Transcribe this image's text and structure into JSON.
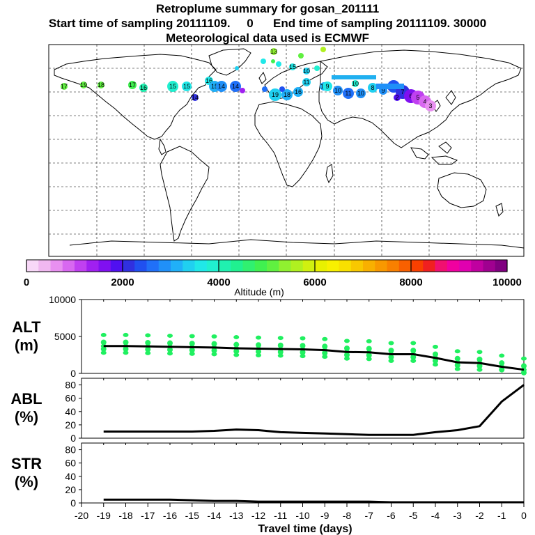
{
  "titles": {
    "line1": "Retroplume summary for gosan_201111",
    "line2": "Start time of sampling 20111109.     0      End time of sampling 20111109. 30000",
    "line3": "Meteorological data used is ECMWF"
  },
  "colorbar": {
    "label": "Altitude (m)",
    "ticks": [
      "0",
      "2000",
      "4000",
      "6000",
      "8000",
      "10000"
    ],
    "range": [
      0,
      10000
    ],
    "colors": [
      "#f8d8f8",
      "#f0b8f0",
      "#e890f0",
      "#d868f0",
      "#c040f0",
      "#a020f0",
      "#8010f0",
      "#5010f0",
      "#3030e0",
      "#2050f0",
      "#2070f8",
      "#2090f8",
      "#20b0f8",
      "#20d0f0",
      "#20e8e8",
      "#20f0d0",
      "#20f0b0",
      "#20f090",
      "#30f070",
      "#40f050",
      "#60f040",
      "#90f030",
      "#b0f020",
      "#d0f010",
      "#e8f000",
      "#f8f000",
      "#f8e000",
      "#f8c800",
      "#f8b000",
      "#f89800",
      "#f88000",
      "#f86000",
      "#f84000",
      "#f02020",
      "#f01070",
      "#f000a0",
      "#e000b0",
      "#c000a0",
      "#a00090",
      "#800080"
    ]
  },
  "plume_labels": [
    "13",
    "18",
    "14",
    "13",
    "17",
    "16",
    "15",
    "10",
    "17",
    "16",
    "17",
    "19",
    "18",
    "17",
    "16",
    "15",
    "15",
    "16",
    "15",
    "14",
    "14",
    "13",
    "14",
    "19",
    "18",
    "16",
    "14",
    "12",
    "11",
    "12",
    "10",
    "11",
    "10",
    "9",
    "8",
    "10",
    "9",
    "8",
    "7",
    "6",
    "5",
    "4",
    "3",
    "2"
  ],
  "chart_data": [
    {
      "type": "line",
      "name": "altitude",
      "ylabel": "ALT\n(m)",
      "ylabel_line1": "ALT",
      "ylabel_line2": "(m)",
      "ylim": [
        0,
        10000
      ],
      "yticks": [
        "0",
        "5000",
        "10000"
      ],
      "x": [
        -19,
        -18,
        -17,
        -16,
        -15,
        -14,
        -13,
        -12,
        -11,
        -10,
        -9,
        -8,
        -7,
        -6,
        -5,
        -4,
        -3,
        -2,
        -1,
        0
      ],
      "values": [
        3700,
        3700,
        3650,
        3600,
        3550,
        3500,
        3400,
        3350,
        3300,
        3250,
        3150,
        2900,
        2850,
        2600,
        2600,
        2100,
        1500,
        1400,
        900,
        500
      ],
      "scatter_color": "#20f060"
    },
    {
      "type": "line",
      "name": "abl",
      "ylabel_line1": "ABL",
      "ylabel_line2": "(%)",
      "ylim": [
        0,
        90
      ],
      "yticks": [
        "0",
        "20",
        "40",
        "60",
        "80"
      ],
      "x": [
        -19,
        -18,
        -17,
        -16,
        -15,
        -14,
        -13,
        -12,
        -11,
        -10,
        -9,
        -8,
        -7,
        -6,
        -5,
        -4,
        -3,
        -2,
        -1,
        0
      ],
      "values": [
        10,
        10,
        10,
        10,
        10,
        11,
        13,
        12,
        9,
        8,
        7,
        6,
        5,
        5,
        5,
        9,
        12,
        18,
        55,
        80
      ]
    },
    {
      "type": "line",
      "name": "str",
      "ylabel_line1": "STR",
      "ylabel_line2": "(%)",
      "ylim": [
        0,
        90
      ],
      "yticks": [
        "0",
        "20",
        "40",
        "60",
        "80"
      ],
      "x": [
        -19,
        -18,
        -17,
        -16,
        -15,
        -14,
        -13,
        -12,
        -11,
        -10,
        -9,
        -8,
        -7,
        -6,
        -5,
        -4,
        -3,
        -2,
        -1,
        0
      ],
      "values": [
        5,
        5,
        5,
        5,
        4,
        3,
        3,
        2,
        2,
        2,
        2,
        2,
        2,
        1,
        1,
        1,
        1,
        1,
        1,
        1
      ]
    }
  ],
  "xaxis": {
    "label": "Travel time (days)",
    "ticks": [
      "-20",
      "-19",
      "-18",
      "-17",
      "-16",
      "-15",
      "-14",
      "-13",
      "-12",
      "-11",
      "-10",
      "-9",
      "-8",
      "-7",
      "-6",
      "-5",
      "-4",
      "-3",
      "-2",
      "-1",
      "0"
    ]
  }
}
